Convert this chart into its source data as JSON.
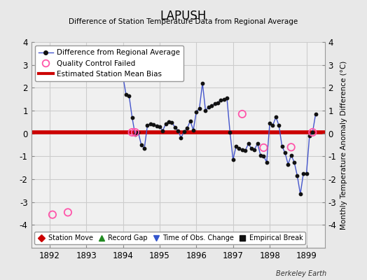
{
  "title": "LAPUSH",
  "subtitle": "Difference of Station Temperature Data from Regional Average",
  "ylabel": "Monthly Temperature Anomaly Difference (°C)",
  "xlabel_bottom": "Berkeley Earth",
  "bias_line": 0.05,
  "ylim": [
    -5,
    4
  ],
  "xlim": [
    1891.5,
    1899.5
  ],
  "xticks": [
    1892,
    1893,
    1894,
    1895,
    1896,
    1897,
    1898,
    1899
  ],
  "yticks": [
    -4,
    -3,
    -2,
    -1,
    0,
    1,
    2,
    3,
    4
  ],
  "bg_color": "#e8e8e8",
  "plot_bg_color": "#f0f0f0",
  "line_color": "#4455cc",
  "dot_color": "#111111",
  "bias_color": "#cc0000",
  "qc_fail_color": "#ff55aa",
  "data_x": [
    1894.0,
    1894.083,
    1894.167,
    1894.25,
    1894.333,
    1894.417,
    1894.5,
    1894.583,
    1894.667,
    1894.75,
    1894.833,
    1894.917,
    1895.0,
    1895.083,
    1895.167,
    1895.25,
    1895.333,
    1895.417,
    1895.5,
    1895.583,
    1895.667,
    1895.75,
    1895.833,
    1895.917,
    1896.0,
    1896.083,
    1896.167,
    1896.25,
    1896.333,
    1896.417,
    1896.5,
    1896.583,
    1896.667,
    1896.75,
    1896.833,
    1896.917,
    1897.0,
    1897.083,
    1897.167,
    1897.25,
    1897.333,
    1897.417,
    1897.5,
    1897.583,
    1897.667,
    1897.75,
    1897.833,
    1897.917,
    1898.0,
    1898.083,
    1898.167,
    1898.25,
    1898.333,
    1898.417,
    1898.5,
    1898.583,
    1898.667,
    1898.75,
    1898.833,
    1898.917,
    1899.0,
    1899.083,
    1899.167,
    1899.25
  ],
  "data_y": [
    2.5,
    1.7,
    1.65,
    0.7,
    -0.05,
    0.05,
    -0.5,
    -0.65,
    0.35,
    0.42,
    0.38,
    0.32,
    0.3,
    0.12,
    0.42,
    0.52,
    0.48,
    0.28,
    0.12,
    -0.18,
    0.08,
    0.22,
    0.55,
    0.15,
    0.95,
    1.1,
    2.2,
    1.0,
    1.15,
    1.2,
    1.3,
    1.35,
    1.45,
    1.5,
    1.55,
    0.05,
    -1.15,
    -0.55,
    -0.65,
    -0.72,
    -0.75,
    -0.45,
    -0.65,
    -0.7,
    -0.45,
    -0.95,
    -1.0,
    -1.25,
    0.45,
    0.35,
    0.72,
    0.35,
    -0.55,
    -0.85,
    -1.35,
    -0.95,
    -1.25,
    -1.85,
    -2.65,
    -1.75,
    -1.75,
    -0.1,
    0.05,
    0.85
  ],
  "qc_fail_x": [
    1892.08,
    1892.5,
    1894.25,
    1894.333,
    1897.25,
    1897.833,
    1898.583,
    1899.167
  ],
  "qc_fail_y": [
    -3.55,
    -3.45,
    0.05,
    0.05,
    0.85,
    -0.62,
    -0.6,
    0.05
  ],
  "legend_items": [
    "Difference from Regional Average",
    "Quality Control Failed",
    "Estimated Station Mean Bias"
  ],
  "bottom_legend": [
    {
      "label": "Station Move",
      "color": "#cc0000",
      "marker": "D"
    },
    {
      "label": "Record Gap",
      "color": "#228B22",
      "marker": "^"
    },
    {
      "label": "Time of Obs. Change",
      "color": "#3355cc",
      "marker": "v"
    },
    {
      "label": "Empirical Break",
      "color": "#111111",
      "marker": "s"
    }
  ]
}
